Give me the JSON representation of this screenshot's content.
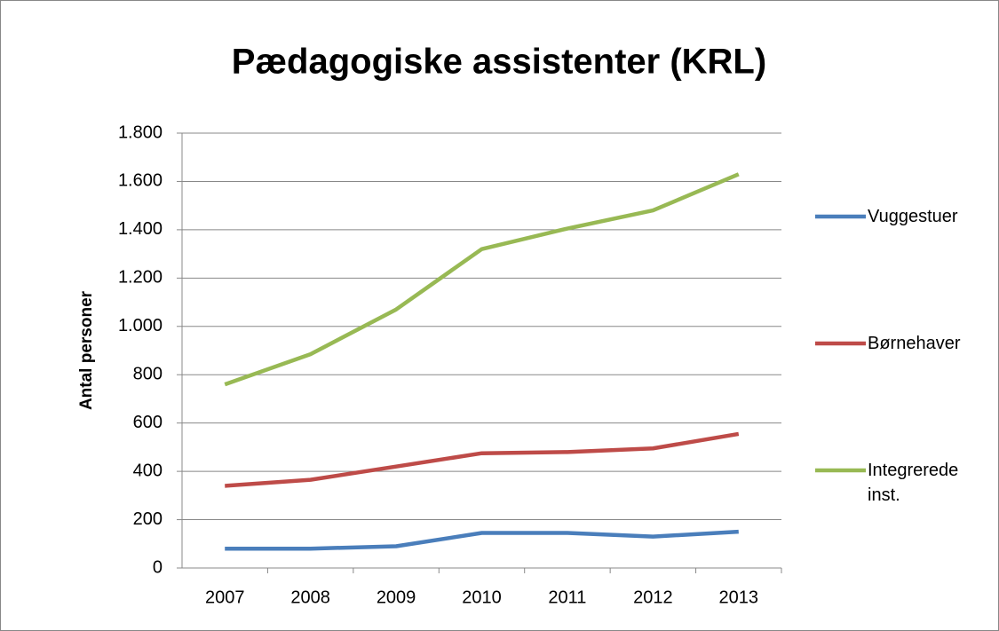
{
  "chart_data": {
    "type": "line",
    "title": "Pædagogiske assistenter (KRL)",
    "y_label": "Antal personer",
    "categories": [
      "2007",
      "2008",
      "2009",
      "2010",
      "2011",
      "2012",
      "2013"
    ],
    "series": [
      {
        "name": "Vuggestuer",
        "color": "#4a7ebb",
        "values": [
          80,
          80,
          90,
          145,
          145,
          130,
          150
        ]
      },
      {
        "name": "Børnehaver",
        "color": "#be4b48",
        "values": [
          340,
          365,
          420,
          475,
          480,
          495,
          555
        ]
      },
      {
        "name": "Integrerede inst.",
        "color": "#98b954",
        "values": [
          760,
          885,
          1070,
          1320,
          1405,
          1480,
          1630
        ]
      }
    ],
    "ylim": [
      0,
      1800
    ],
    "yticks": [
      0,
      200,
      400,
      600,
      800,
      {
        "value": 1000,
        "label": "1.000"
      },
      {
        "value": 1200,
        "label": "1.200"
      },
      {
        "value": 1400,
        "label": "1.400"
      },
      {
        "value": 1600,
        "label": "1.600"
      },
      {
        "value": 1800,
        "label": "1.800"
      }
    ],
    "grid": true,
    "legend": "right"
  }
}
